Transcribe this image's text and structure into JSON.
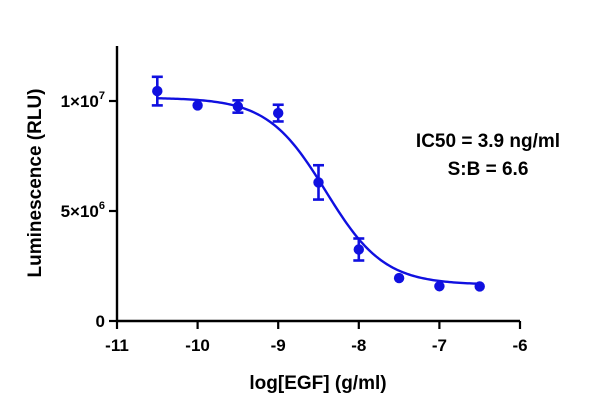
{
  "chart_data": {
    "type": "scatter",
    "title": "",
    "xlabel": "log[EGF] (g/ml)",
    "ylabel": "Luminescence (RLU)",
    "xlim": [
      -11,
      -6
    ],
    "ylim": [
      0,
      12500000
    ],
    "x_ticks": [
      -11,
      -10,
      -9,
      -8,
      -7,
      -6
    ],
    "x_tick_labels": [
      "-11",
      "-10",
      "-9",
      "-8",
      "-7",
      "-6"
    ],
    "y_ticks": [
      0,
      5000000,
      10000000
    ],
    "y_tick_labels": [
      {
        "mantissa": "0",
        "exponent": ""
      },
      {
        "mantissa": "5×10",
        "exponent": "6"
      },
      {
        "mantissa": "1×10",
        "exponent": "7"
      }
    ],
    "grid": false,
    "color": "#1010e0",
    "points": [
      {
        "x": -10.5,
        "y": 10450000,
        "err": 650000
      },
      {
        "x": -10.0,
        "y": 9800000,
        "err": 0
      },
      {
        "x": -9.5,
        "y": 9750000,
        "err": 280000
      },
      {
        "x": -9.0,
        "y": 9450000,
        "err": 380000
      },
      {
        "x": -8.5,
        "y": 6300000,
        "err": 780000
      },
      {
        "x": -8.0,
        "y": 3250000,
        "err": 500000
      },
      {
        "x": -7.5,
        "y": 1950000,
        "err": 0
      },
      {
        "x": -7.0,
        "y": 1580000,
        "err": 0
      },
      {
        "x": -6.5,
        "y": 1570000,
        "err": 0
      }
    ],
    "fit": {
      "model": "four-parameter logistic",
      "top": 10150000,
      "bottom": 1650000,
      "logIC50": -8.41,
      "hill_slope": -1.2,
      "x_range": [
        -10.5,
        -6.5
      ]
    },
    "annotations": [
      "IC50 = 3.9 ng/ml",
      "S:B = 6.6"
    ]
  }
}
